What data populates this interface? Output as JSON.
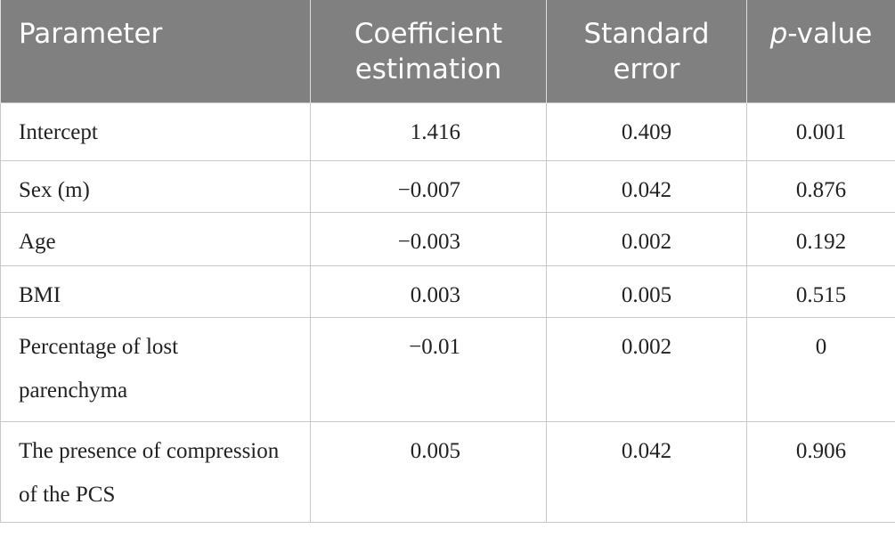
{
  "table": {
    "header": [
      "Parameter",
      "Coefficient estimation",
      "Standard error",
      {
        "italic": "p",
        "text": "-value"
      }
    ],
    "rows": [
      [
        "Intercept",
        "1.416",
        "0.409",
        "0.001"
      ],
      [
        "Sex (m)",
        "−0.007",
        "0.042",
        "0.876"
      ],
      [
        "Age",
        "−0.003",
        "0.002",
        "0.192"
      ],
      [
        "BMI",
        "0.003",
        "0.005",
        "0.515"
      ],
      [
        "Percentage of lost parenchyma",
        "−0.01",
        "0.002",
        "0"
      ],
      [
        "The presence of compression of the PCS",
        "0.005",
        "0.042",
        "0.906"
      ]
    ]
  }
}
